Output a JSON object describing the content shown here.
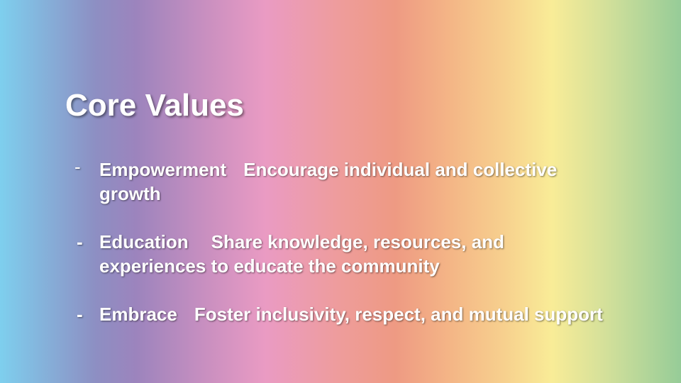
{
  "slide": {
    "title": "Core Values",
    "values": [
      {
        "bullet": "-",
        "name": "Empowerment",
        "description": "Encourage individual and collective growth"
      },
      {
        "bullet": "-",
        "name": "Education",
        "description": "Share knowledge, resources, and experiences to educate the community"
      },
      {
        "bullet": "-",
        "name": "Embrace",
        "description": "Foster inclusivity, respect, and mutual support"
      }
    ]
  }
}
